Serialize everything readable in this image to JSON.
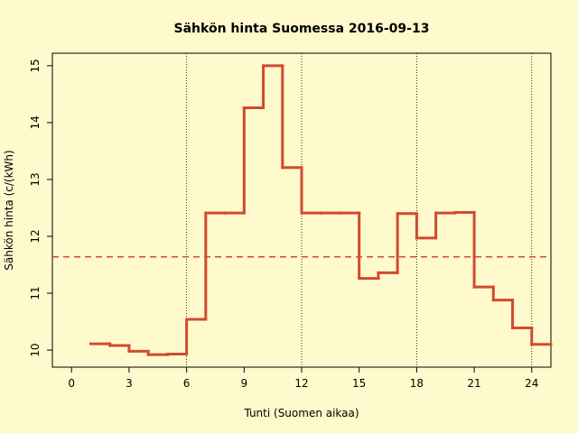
{
  "chart_data": {
    "type": "step",
    "title": "Sähkön hinta Suomessa 2016-09-13",
    "x_label": "Tunti (Suomen aikaa)",
    "y_label": "Sähkön hinta (c/(kWh)",
    "x": [
      1,
      2,
      3,
      4,
      5,
      6,
      7,
      8,
      9,
      10,
      11,
      12,
      13,
      14,
      15,
      16,
      17,
      18,
      19,
      20,
      21,
      22,
      23,
      24
    ],
    "series": [
      {
        "color": "#d24a2f",
        "values": [
          10.11,
          10.08,
          9.98,
          9.92,
          9.93,
          10.54,
          12.41,
          12.41,
          14.26,
          15.0,
          13.21,
          12.41,
          12.41,
          12.41,
          11.26,
          11.36,
          12.4,
          11.97,
          12.41,
          12.42,
          11.11,
          10.88,
          10.39,
          10.1
        ]
      }
    ],
    "mean_line": 11.64,
    "mean_color": "#d24a2f",
    "vlines": [
      6,
      12,
      18,
      24
    ],
    "xlim": [
      -1,
      25
    ],
    "ylim": [
      9.7,
      15.22
    ],
    "xticks": [
      0,
      3,
      6,
      9,
      12,
      15,
      18,
      21,
      24
    ],
    "yticks": [
      10,
      11,
      12,
      13,
      14,
      15
    ]
  }
}
